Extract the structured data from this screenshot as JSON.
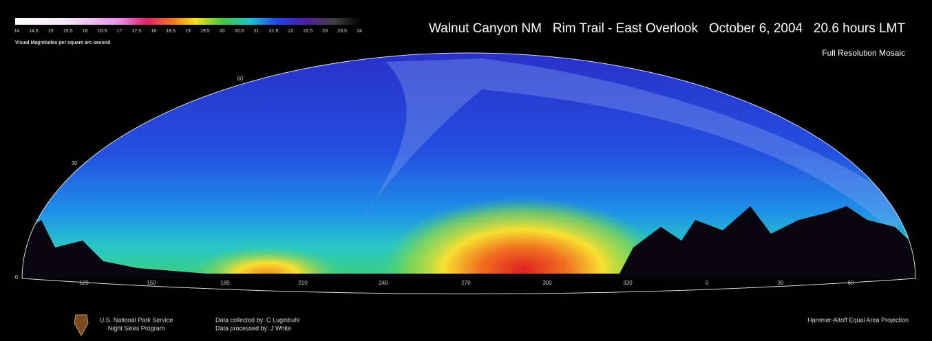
{
  "header": {
    "title": "Walnut Canyon NM   Rim Trail - East Overlook   October 6, 2004   20.6 hours LMT",
    "subtitle": "Full Resolution Mosaic"
  },
  "color_scale": {
    "ticks": [
      14,
      14.5,
      15,
      15.5,
      16,
      16.5,
      17,
      17.5,
      18,
      18.5,
      19,
      19.5,
      20,
      20.5,
      21,
      21.5,
      22,
      22.5,
      23,
      23.5,
      24
    ],
    "caption": "Visual Magnitudes per square arc-second"
  },
  "sky_map": {
    "altitude_labels": [
      "60",
      "30",
      "0"
    ],
    "azimuth_labels": [
      "120",
      "150",
      "180",
      "210",
      "240",
      "270",
      "300",
      "330",
      "0",
      "30",
      "60"
    ]
  },
  "footer": {
    "agency": [
      "U.S. National Park Service",
      "Night Skies Program"
    ],
    "credits": [
      "Data collected by: C Luginbuhl",
      "Data processed by: J White"
    ],
    "projection": "Hammer-Aitoff Equal Area Projection"
  }
}
